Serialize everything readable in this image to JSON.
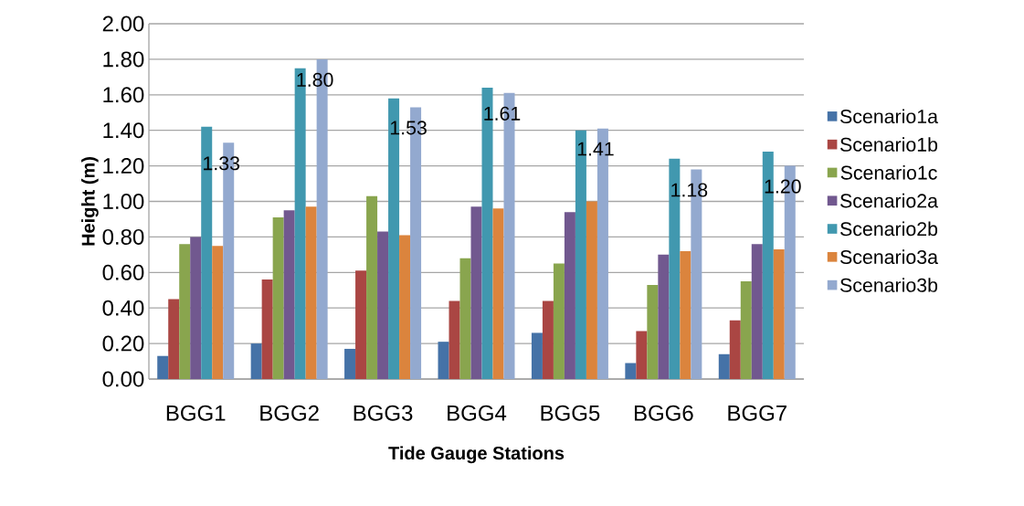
{
  "chart_data": {
    "type": "bar",
    "xlabel": "Tide Gauge Stations",
    "ylabel": "Height (m)",
    "categories": [
      "BGG1",
      "BGG2",
      "BGG3",
      "BGG4",
      "BGG5",
      "BGG6",
      "BGG7"
    ],
    "series": [
      {
        "name": "Scenario1a",
        "color": "#4572a7",
        "values": [
          0.13,
          0.2,
          0.17,
          0.21,
          0.26,
          0.09,
          0.14
        ]
      },
      {
        "name": "Scenario1b",
        "color": "#aa4643",
        "values": [
          0.45,
          0.56,
          0.61,
          0.44,
          0.44,
          0.27,
          0.33
        ]
      },
      {
        "name": "Scenario1c",
        "color": "#89a54e",
        "values": [
          0.76,
          0.91,
          1.03,
          0.68,
          0.65,
          0.53,
          0.55
        ]
      },
      {
        "name": "Scenario2a",
        "color": "#71588f",
        "values": [
          0.8,
          0.95,
          0.83,
          0.97,
          0.94,
          0.7,
          0.76
        ]
      },
      {
        "name": "Scenario2b",
        "color": "#4198af",
        "values": [
          1.42,
          1.75,
          1.58,
          1.64,
          1.4,
          1.24,
          1.28
        ]
      },
      {
        "name": "Scenario3a",
        "color": "#db843d",
        "values": [
          0.75,
          0.97,
          0.81,
          0.96,
          1.0,
          0.72,
          0.73
        ]
      },
      {
        "name": "Scenario3b",
        "color": "#93a9cf",
        "values": [
          1.33,
          1.8,
          1.53,
          1.61,
          1.41,
          1.18,
          1.2
        ],
        "value_labels": [
          "1.33",
          "1.80",
          "1.53",
          "1.61",
          "1.41",
          "1.18",
          "1.20"
        ]
      }
    ],
    "ylim": [
      0,
      2.0
    ],
    "yticks": [
      {
        "value": 0,
        "label": "0.00"
      },
      {
        "value": 0.2,
        "label": "0.20"
      },
      {
        "value": 0.4,
        "label": "0.40"
      },
      {
        "value": 0.6,
        "label": "0.60"
      },
      {
        "value": 0.8,
        "label": "0.80"
      },
      {
        "value": 1.0,
        "label": "1.00"
      },
      {
        "value": 1.2,
        "label": "1.20"
      },
      {
        "value": 1.4,
        "label": "1.40"
      },
      {
        "value": 1.6,
        "label": "1.60"
      },
      {
        "value": 1.8,
        "label": "1.80"
      },
      {
        "value": 2.0,
        "label": "2.00"
      }
    ],
    "grid": "y",
    "legend": "right"
  }
}
